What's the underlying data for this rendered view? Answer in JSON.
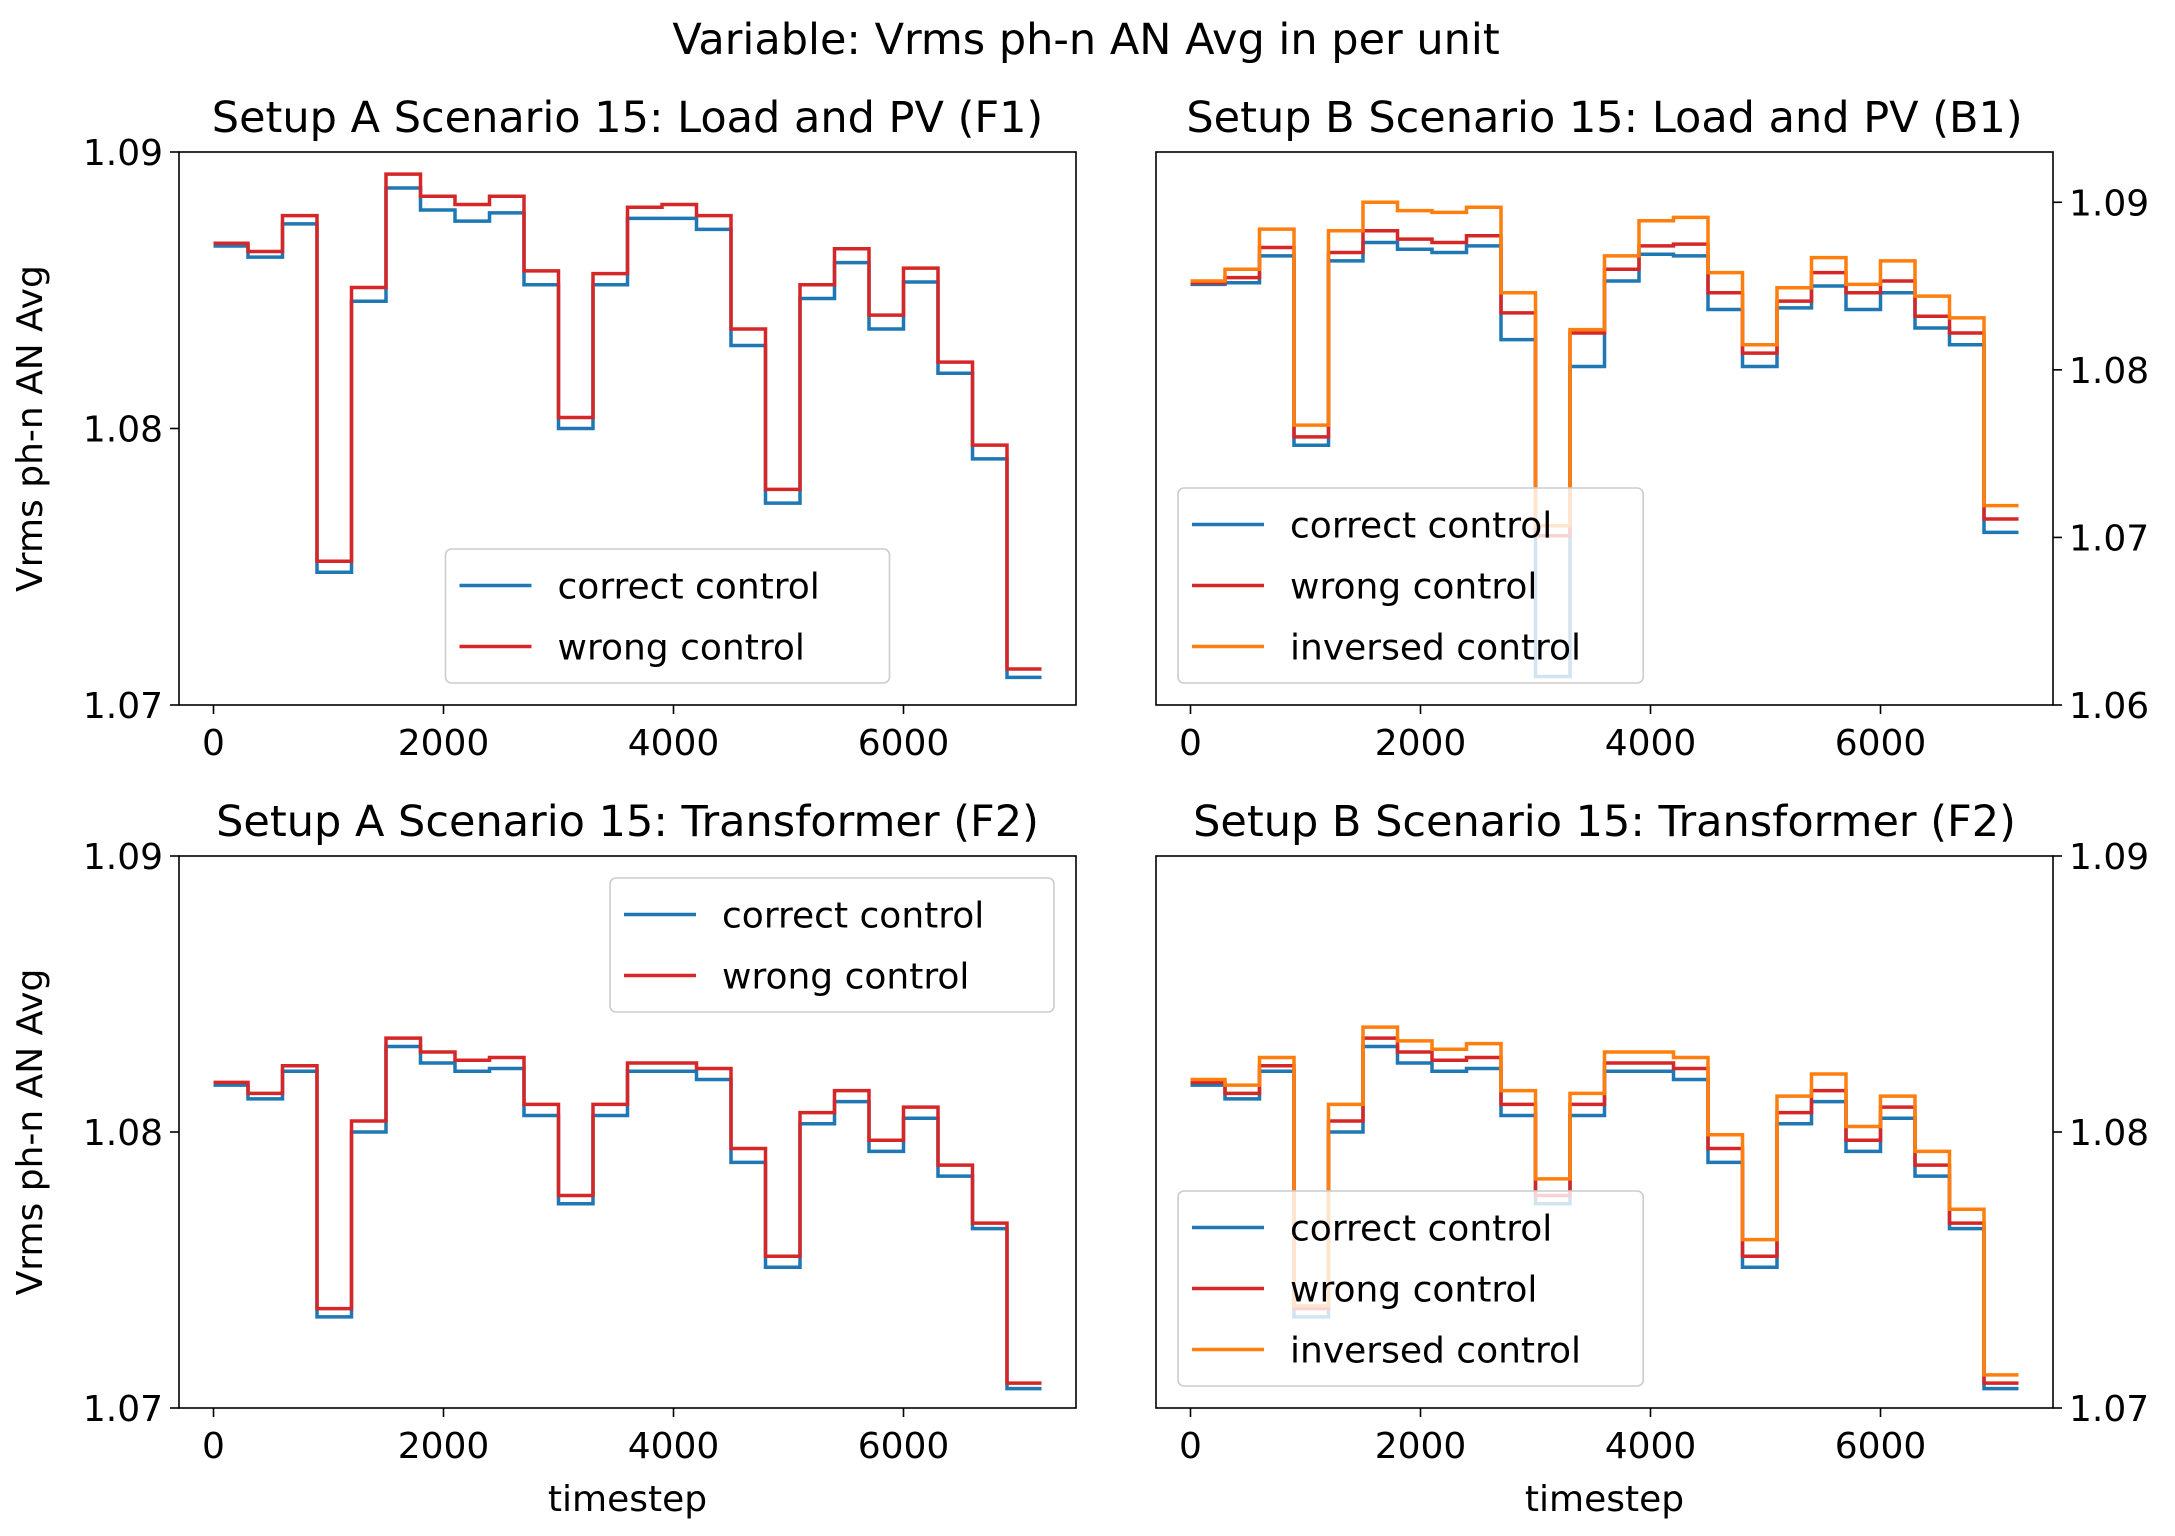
{
  "suptitle": "Variable: Vrms ph-n AN Avg in per unit",
  "colors": {
    "correct": "#1f77b4",
    "wrong": "#d62728",
    "inversed": "#ff7f0e"
  },
  "chart_data": [
    {
      "type": "line",
      "step": "post",
      "title": "Setup A Scenario 15: Load and PV (F1)",
      "xlabel": "",
      "ylabel": "Vrms ph-n AN Avg",
      "xlim": [
        -300,
        7500
      ],
      "ylim": [
        1.07,
        1.09
      ],
      "xticks": [
        0,
        2000,
        4000,
        6000
      ],
      "yticks": [
        1.07,
        1.08,
        1.09
      ],
      "ytick_labels": [
        "1.07",
        "1.08",
        "1.09"
      ],
      "yaxis_side": "left",
      "legend_position": "lower-center",
      "x": [
        0,
        300,
        600,
        900,
        1200,
        1500,
        1800,
        2100,
        2400,
        2700,
        3000,
        3300,
        3600,
        3900,
        4200,
        4500,
        4800,
        5100,
        5400,
        5700,
        6000,
        6300,
        6600,
        6900,
        7200
      ],
      "series": [
        {
          "name": "correct control",
          "color": "#1f77b4",
          "values": [
            1.0866,
            1.0862,
            1.0874,
            1.0748,
            1.0846,
            1.0887,
            1.0879,
            1.0875,
            1.0878,
            1.0852,
            1.08,
            1.0852,
            1.0876,
            1.0876,
            1.0872,
            1.083,
            1.0773,
            1.0847,
            1.086,
            1.0836,
            1.0853,
            1.082,
            1.0789,
            1.071,
            1.071
          ]
        },
        {
          "name": "wrong control",
          "color": "#d62728",
          "values": [
            1.0867,
            1.0864,
            1.0877,
            1.0752,
            1.0851,
            1.0892,
            1.0884,
            1.0881,
            1.0884,
            1.0857,
            1.0804,
            1.0856,
            1.088,
            1.0881,
            1.0877,
            1.0836,
            1.0778,
            1.0852,
            1.0865,
            1.0841,
            1.0858,
            1.0824,
            1.0794,
            1.0713,
            1.0713
          ]
        }
      ]
    },
    {
      "type": "line",
      "step": "post",
      "title": "Setup B Scenario 15: Load and PV (B1)",
      "xlabel": "",
      "ylabel": "",
      "xlim": [
        -300,
        7500
      ],
      "ylim": [
        1.06,
        1.093
      ],
      "xticks": [
        0,
        2000,
        4000,
        6000
      ],
      "yticks": [
        1.06,
        1.07,
        1.08,
        1.09
      ],
      "ytick_labels": [
        "1.06",
        "1.07",
        "1.08",
        "1.09"
      ],
      "yaxis_side": "right",
      "legend_position": "lower-left",
      "x": [
        0,
        300,
        600,
        900,
        1200,
        1500,
        1800,
        2100,
        2400,
        2700,
        3000,
        3300,
        3600,
        3900,
        4200,
        4500,
        4800,
        5100,
        5400,
        5700,
        6000,
        6300,
        6600,
        6900,
        7200
      ],
      "series": [
        {
          "name": "correct control",
          "color": "#1f77b4",
          "values": [
            1.0851,
            1.0852,
            1.0868,
            1.0755,
            1.0865,
            1.0876,
            1.0872,
            1.087,
            1.0874,
            1.0818,
            1.0617,
            1.0802,
            1.0853,
            1.0869,
            1.0868,
            1.0836,
            1.0802,
            1.0837,
            1.085,
            1.0836,
            1.0846,
            1.0825,
            1.0815,
            1.0703,
            1.0703
          ]
        },
        {
          "name": "wrong control",
          "color": "#d62728",
          "values": [
            1.0852,
            1.0855,
            1.0873,
            1.076,
            1.087,
            1.0883,
            1.0878,
            1.0876,
            1.088,
            1.0834,
            1.0701,
            1.0822,
            1.086,
            1.0874,
            1.0875,
            1.0846,
            1.081,
            1.0841,
            1.0858,
            1.0846,
            1.0853,
            1.0832,
            1.0822,
            1.0711,
            1.0711
          ]
        },
        {
          "name": "inversed control",
          "color": "#ff7f0e",
          "values": [
            1.0853,
            1.086,
            1.0884,
            1.0767,
            1.0883,
            1.09,
            1.0895,
            1.0894,
            1.0897,
            1.0846,
            1.0707,
            1.0824,
            1.0868,
            1.0889,
            1.0891,
            1.0858,
            1.0815,
            1.0849,
            1.0867,
            1.0851,
            1.0865,
            1.0844,
            1.0831,
            1.0719,
            1.0719
          ]
        }
      ]
    },
    {
      "type": "line",
      "step": "post",
      "title": "Setup A Scenario 15: Transformer (F2)",
      "xlabel": "timestep",
      "ylabel": "Vrms ph-n AN Avg",
      "xlim": [
        -300,
        7500
      ],
      "ylim": [
        1.07,
        1.09
      ],
      "xticks": [
        0,
        2000,
        4000,
        6000
      ],
      "yticks": [
        1.07,
        1.08,
        1.09
      ],
      "ytick_labels": [
        "1.07",
        "1.08",
        "1.09"
      ],
      "yaxis_side": "left",
      "legend_position": "upper-right",
      "x": [
        0,
        300,
        600,
        900,
        1200,
        1500,
        1800,
        2100,
        2400,
        2700,
        3000,
        3300,
        3600,
        3900,
        4200,
        4500,
        4800,
        5100,
        5400,
        5700,
        6000,
        6300,
        6600,
        6900,
        7200
      ],
      "series": [
        {
          "name": "correct control",
          "color": "#1f77b4",
          "values": [
            1.0817,
            1.0812,
            1.0822,
            1.0733,
            1.08,
            1.0831,
            1.0825,
            1.0822,
            1.0823,
            1.0806,
            1.0774,
            1.0806,
            1.0822,
            1.0822,
            1.0819,
            1.0789,
            1.0751,
            1.0803,
            1.0811,
            1.0793,
            1.0805,
            1.0784,
            1.0765,
            1.0707,
            1.0707
          ]
        },
        {
          "name": "wrong control",
          "color": "#d62728",
          "values": [
            1.0818,
            1.0814,
            1.0824,
            1.0736,
            1.0804,
            1.0834,
            1.0829,
            1.0826,
            1.0827,
            1.081,
            1.0777,
            1.081,
            1.0825,
            1.0825,
            1.0823,
            1.0794,
            1.0755,
            1.0807,
            1.0815,
            1.0797,
            1.0809,
            1.0788,
            1.0767,
            1.0709,
            1.0709
          ]
        }
      ]
    },
    {
      "type": "line",
      "step": "post",
      "title": "Setup B Scenario 15: Transformer (F2)",
      "xlabel": "timestep",
      "ylabel": "",
      "xlim": [
        -300,
        7500
      ],
      "ylim": [
        1.07,
        1.09
      ],
      "xticks": [
        0,
        2000,
        4000,
        6000
      ],
      "yticks": [
        1.07,
        1.08,
        1.09
      ],
      "ytick_labels": [
        "1.07",
        "1.08",
        "1.09"
      ],
      "yaxis_side": "right",
      "legend_position": "lower-left",
      "x": [
        0,
        300,
        600,
        900,
        1200,
        1500,
        1800,
        2100,
        2400,
        2700,
        3000,
        3300,
        3600,
        3900,
        4200,
        4500,
        4800,
        5100,
        5400,
        5700,
        6000,
        6300,
        6600,
        6900,
        7200
      ],
      "series": [
        {
          "name": "correct control",
          "color": "#1f77b4",
          "values": [
            1.0817,
            1.0812,
            1.0822,
            1.0733,
            1.08,
            1.0831,
            1.0825,
            1.0822,
            1.0823,
            1.0806,
            1.0774,
            1.0806,
            1.0822,
            1.0822,
            1.0819,
            1.0789,
            1.0751,
            1.0803,
            1.0811,
            1.0793,
            1.0805,
            1.0784,
            1.0765,
            1.0707,
            1.0707
          ]
        },
        {
          "name": "wrong control",
          "color": "#d62728",
          "values": [
            1.0818,
            1.0814,
            1.0824,
            1.0736,
            1.0804,
            1.0834,
            1.0829,
            1.0826,
            1.0827,
            1.081,
            1.0777,
            1.081,
            1.0825,
            1.0825,
            1.0823,
            1.0794,
            1.0755,
            1.0807,
            1.0815,
            1.0797,
            1.0809,
            1.0788,
            1.0767,
            1.0709,
            1.0709
          ]
        },
        {
          "name": "inversed control",
          "color": "#ff7f0e",
          "values": [
            1.0819,
            1.0817,
            1.0827,
            1.0737,
            1.081,
            1.0838,
            1.0833,
            1.083,
            1.0832,
            1.0815,
            1.0783,
            1.0814,
            1.0829,
            1.0829,
            1.0827,
            1.0799,
            1.0761,
            1.0813,
            1.0821,
            1.0802,
            1.0813,
            1.0793,
            1.0772,
            1.0712,
            1.0712
          ]
        }
      ]
    }
  ]
}
